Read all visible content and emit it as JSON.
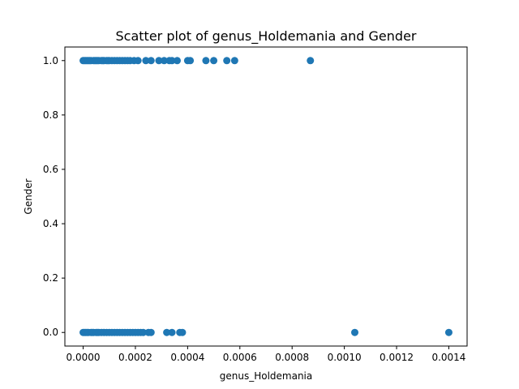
{
  "chart_data": {
    "type": "scatter",
    "title": "Scatter plot of genus_Holdemania and Gender",
    "xlabel": "genus_Holdemania",
    "ylabel": "Gender",
    "xlim": [
      -7e-05,
      0.00147
    ],
    "ylim": [
      -0.05,
      1.05
    ],
    "xticks": [
      0,
      0.0002,
      0.0004,
      0.0006,
      0.0008,
      0.001,
      0.0012,
      0.0014
    ],
    "xtick_labels": [
      "0.0000",
      "0.0002",
      "0.0004",
      "0.0006",
      "0.0008",
      "0.0010",
      "0.0012",
      "0.0014"
    ],
    "yticks": [
      0,
      0.2,
      0.4,
      0.6,
      0.8,
      1.0
    ],
    "ytick_labels": [
      "0.0",
      "0.2",
      "0.4",
      "0.6",
      "0.8",
      "1.0"
    ],
    "grid": false,
    "point_color": "#1f77b4",
    "series": [
      {
        "x": [
          0.0,
          5e-06,
          1e-05,
          1.5e-05,
          2e-05,
          2.5e-05,
          3e-05,
          4e-05,
          4.5e-05,
          5e-05,
          5.5e-05,
          6e-05,
          7e-05,
          7.5e-05,
          8e-05,
          9e-05,
          9.5e-05,
          0.0001,
          0.00011,
          0.00012,
          0.00013,
          0.00014,
          0.00015,
          0.00016,
          0.00017,
          0.00018,
          0.000195,
          0.00021,
          0.00024,
          0.00026,
          0.00029,
          0.00031,
          0.00033,
          0.00034,
          0.00036,
          0.0004,
          0.00041,
          0.00047,
          0.0005,
          0.00055,
          0.00058,
          0.00087
        ],
        "y": [
          1,
          1,
          1,
          1,
          1,
          1,
          1,
          1,
          1,
          1,
          1,
          1,
          1,
          1,
          1,
          1,
          1,
          1,
          1,
          1,
          1,
          1,
          1,
          1,
          1,
          1,
          1,
          1,
          1,
          1,
          1,
          1,
          1,
          1,
          1,
          1,
          1,
          1,
          1,
          1,
          1,
          1
        ]
      },
      {
        "x": [
          0.0,
          5e-06,
          1e-05,
          1.5e-05,
          2e-05,
          3e-05,
          3.5e-05,
          4e-05,
          5e-05,
          5.5e-05,
          6e-05,
          7e-05,
          8e-05,
          9e-05,
          0.0001,
          0.00011,
          0.00012,
          0.00013,
          0.00014,
          0.00015,
          0.00016,
          0.00017,
          0.00018,
          0.00019,
          0.0002,
          0.00021,
          0.00022,
          0.00023,
          0.00025,
          0.00026,
          0.00032,
          0.00034,
          0.00037,
          0.00038,
          0.00104,
          0.0014
        ],
        "y": [
          0,
          0,
          0,
          0,
          0,
          0,
          0,
          0,
          0,
          0,
          0,
          0,
          0,
          0,
          0,
          0,
          0,
          0,
          0,
          0,
          0,
          0,
          0,
          0,
          0,
          0,
          0,
          0,
          0,
          0,
          0,
          0,
          0,
          0,
          0,
          0
        ]
      }
    ]
  }
}
